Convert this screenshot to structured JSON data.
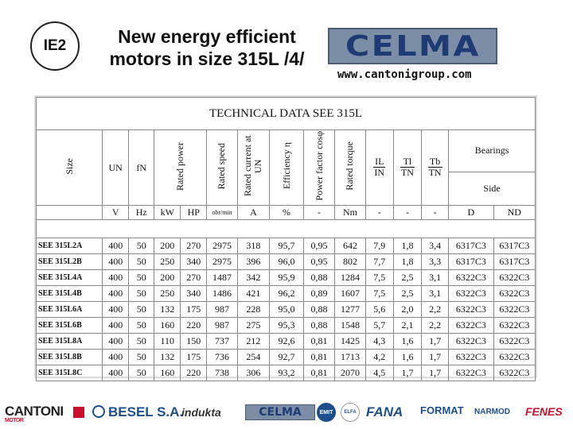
{
  "badge": "IE2",
  "header": {
    "title_line1": "New energy efficient",
    "title_line2": "motors in size 315L /4/",
    "brand": "CELMA",
    "website": "www.cantonigroup.com"
  },
  "table": {
    "caption": "TECHNICAL DATA SEE 315L",
    "headers": {
      "size": "Size",
      "un": "UN",
      "fn": "fN",
      "rated_power": "Rated power",
      "rated_speed": "Rated speed",
      "rated_current": "Rated current at UN",
      "efficiency": "Efficiency η",
      "power_factor": "Power factor cosφ",
      "rated_torque": "Rated torque",
      "il_num": "IL",
      "il_den": "IN",
      "tl_num": "Tl",
      "tl_den": "TN",
      "tb_num": "Tb",
      "tb_den": "TN",
      "bearings": "Bearings",
      "side": "Side"
    },
    "units": [
      "V",
      "Hz",
      "kW",
      "HP",
      "obr/min",
      "A",
      "%",
      "-",
      "Nm",
      "-",
      "-",
      "-",
      "D",
      "ND"
    ],
    "rows": [
      [
        "SEE 315L2A",
        "400",
        "50",
        "200",
        "270",
        "2975",
        "318",
        "95,7",
        "0,95",
        "642",
        "7,9",
        "1,8",
        "3,4",
        "6317C3",
        "6317C3"
      ],
      [
        "SEE 315L2B",
        "400",
        "50",
        "250",
        "340",
        "2975",
        "396",
        "96,0",
        "0,95",
        "802",
        "7,7",
        "1,8",
        "3,3",
        "6317C3",
        "6317C3"
      ],
      [
        "SEE 315L4A",
        "400",
        "50",
        "200",
        "270",
        "1487",
        "342",
        "95,9",
        "0,88",
        "1284",
        "7,5",
        "2,5",
        "3,1",
        "6322C3",
        "6322C3"
      ],
      [
        "SEE 315L4B",
        "400",
        "50",
        "250",
        "340",
        "1486",
        "421",
        "96,2",
        "0,89",
        "1607",
        "7,5",
        "2,5",
        "3,1",
        "6322C3",
        "6322C3"
      ],
      [
        "SEE 315L6A",
        "400",
        "50",
        "132",
        "175",
        "987",
        "228",
        "95,0",
        "0,88",
        "1277",
        "5,6",
        "2,0",
        "2,2",
        "6322C3",
        "6322C3"
      ],
      [
        "SEE 315L6B",
        "400",
        "50",
        "160",
        "220",
        "987",
        "275",
        "95,3",
        "0,88",
        "1548",
        "5,7",
        "2,1",
        "2,2",
        "6322C3",
        "6322C3"
      ],
      [
        "SEE 315L8A",
        "400",
        "50",
        "110",
        "150",
        "737",
        "212",
        "92,6",
        "0,81",
        "1425",
        "4,3",
        "1,6",
        "1,7",
        "6322C3",
        "6322C3"
      ],
      [
        "SEE 315L8B",
        "400",
        "50",
        "132",
        "175",
        "736",
        "254",
        "92,7",
        "0,81",
        "1713",
        "4,2",
        "1,6",
        "1,7",
        "6322C3",
        "6322C3"
      ],
      [
        "SEE 315L8C",
        "400",
        "50",
        "160",
        "220",
        "738",
        "306",
        "93,2",
        "0,81",
        "2070",
        "4,5",
        "1,7",
        "1,7",
        "6322C3",
        "6322C3"
      ]
    ]
  },
  "footer": {
    "cantoni": "CANTONI",
    "cantoni_sub": "MOTOR",
    "besel": "BESEL S.A.",
    "indukta": "indukta",
    "celma": "CELMA",
    "emit": "EMIT",
    "elfa": "ELFA",
    "fana": "FANA",
    "format": "FORMAT",
    "narmod": "NARMOD",
    "fenes": "FENES"
  },
  "colors": {
    "celma_blue": "#1e3b75",
    "celma_bg": "#7b8ea6",
    "besel_blue": "#1d4f8f",
    "cantoni_red": "#c8102e"
  }
}
